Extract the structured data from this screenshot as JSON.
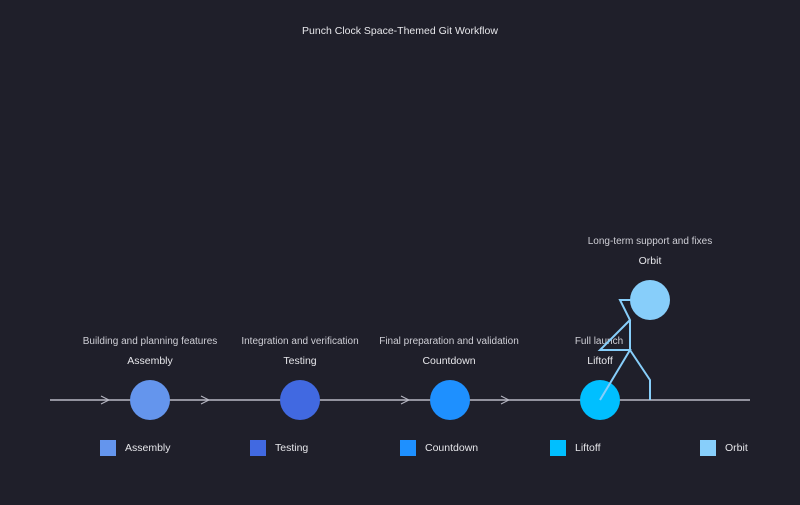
{
  "title": "Punch Clock Space-Themed Git Workflow",
  "stages": [
    {
      "label": "Assembly",
      "description": "Building and planning features",
      "color": "#6495ed"
    },
    {
      "label": "Testing",
      "description": "Integration and verification",
      "color": "#4169e1"
    },
    {
      "label": "Countdown",
      "description": "Final preparation and validation",
      "color": "#1e90ff"
    },
    {
      "label": "Liftoff",
      "description": "Full launch",
      "color": "#00bfff"
    },
    {
      "label": "Orbit",
      "description": "Long-term support and fixes",
      "color": "#87cefa"
    }
  ],
  "legend": [
    "Assembly",
    "Testing",
    "Countdown",
    "Liftoff",
    "Orbit"
  ],
  "colors": {
    "background": "#1f1f2a",
    "timeline": "#b8b8c4",
    "text": "#e6e6ea",
    "orbit_path": "#87cefa"
  }
}
